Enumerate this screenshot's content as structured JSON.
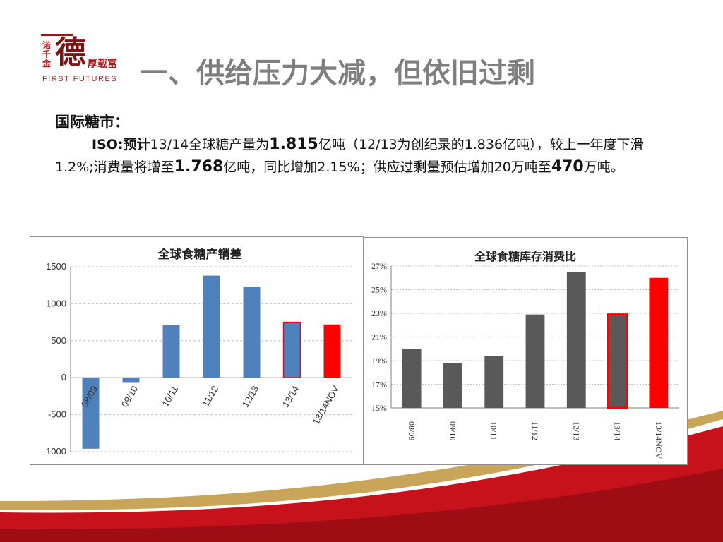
{
  "logo": {
    "side_chars": "诺\n千\n金",
    "big_char": "德",
    "tagline": "厚载富",
    "english": "FIRST FUTURES"
  },
  "title": "一、供给压力大减，但依旧过剩",
  "section_heading": "国际糖市：",
  "paragraph": {
    "s1": "ISO:预计",
    "s2": "13/14全球糖产量为",
    "s3": "1.815",
    "s4": "亿吨（12/13为创纪录的1.836亿吨），较上一年度下滑1.2%;消费量将增至",
    "s5": "1.768",
    "s6": "亿吨，同比增加2.15%；供应过剩量预估增加20万吨至",
    "s7": "470",
    "s8": "万吨。"
  },
  "colors": {
    "blue": "#4f81bd",
    "gray": "#595959",
    "red": "#ff0000",
    "wave_red": "#c8121b",
    "wave_gold": "#c9a55a"
  },
  "chart_data": [
    {
      "type": "bar",
      "title": "全球食糖产销差",
      "categories": [
        "08/09",
        "09/10",
        "10/11",
        "11/12",
        "12/13",
        "13/14",
        "13/14NOV"
      ],
      "values": [
        -960,
        -60,
        710,
        1380,
        1230,
        750,
        720
      ],
      "bar_colors": [
        "blue",
        "blue",
        "blue",
        "blue",
        "blue",
        "blue-red-outline",
        "red"
      ],
      "ylim": [
        -1000,
        1500
      ],
      "yticks": [
        -1000,
        -500,
        0,
        500,
        1000,
        1500
      ],
      "ytick_labels": [
        "-1000",
        "-500",
        "0",
        "500",
        "1000",
        "1500"
      ],
      "grid": true,
      "xlabel": "",
      "ylabel": ""
    },
    {
      "type": "bar",
      "title": "全球食糖库存消费比",
      "categories": [
        "08/09",
        "09/10",
        "10/11",
        "11/12",
        "12/13",
        "13/14",
        "13/14NOV"
      ],
      "values": [
        20.0,
        18.8,
        19.4,
        22.9,
        26.5,
        22.9,
        26.0
      ],
      "bar_colors": [
        "gray",
        "gray",
        "gray",
        "gray",
        "gray",
        "gray-red-outline",
        "red"
      ],
      "ylim": [
        15,
        27
      ],
      "yticks": [
        15,
        17,
        19,
        21,
        23,
        25,
        27
      ],
      "ytick_labels": [
        "15%",
        "17%",
        "19%",
        "21%",
        "23%",
        "25%",
        "27%"
      ],
      "grid": true,
      "xlabel": "",
      "ylabel": ""
    }
  ]
}
